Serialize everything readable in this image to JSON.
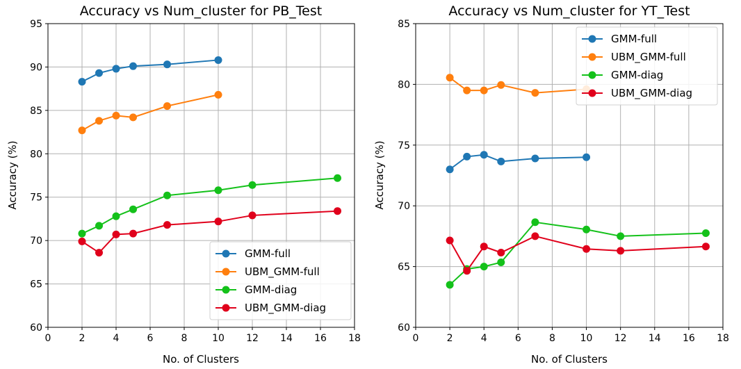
{
  "chart_data": [
    {
      "type": "line",
      "title": "Accuracy vs Num_cluster for PB_Test",
      "xlabel": "No. of Clusters",
      "ylabel": "Accuracy (%)",
      "xlim": [
        0,
        18
      ],
      "ylim": [
        60,
        95
      ],
      "xticks": [
        0,
        2,
        4,
        6,
        8,
        10,
        12,
        14,
        16,
        18
      ],
      "yticks": [
        60,
        65,
        70,
        75,
        80,
        85,
        90,
        95
      ],
      "grid": true,
      "legend_position": "lower-right",
      "series": [
        {
          "name": "GMM-full",
          "color": "#1f77b4",
          "x": [
            2,
            3,
            4,
            5,
            7,
            10
          ],
          "y": [
            88.3,
            89.3,
            89.8,
            90.1,
            90.3,
            90.8
          ]
        },
        {
          "name": "UBM_GMM-full",
          "color": "#ff7f0e",
          "x": [
            2,
            3,
            4,
            5,
            7,
            10
          ],
          "y": [
            82.7,
            83.8,
            84.4,
            84.2,
            85.5,
            86.8
          ]
        },
        {
          "name": "GMM-diag",
          "color": "#14c11a",
          "x": [
            2,
            3,
            4,
            5,
            7,
            10,
            12,
            17
          ],
          "y": [
            70.8,
            71.7,
            72.8,
            73.6,
            75.2,
            75.8,
            76.4,
            77.2
          ]
        },
        {
          "name": "UBM_GMM-diag",
          "color": "#e0001b",
          "x": [
            2,
            3,
            4,
            5,
            7,
            10,
            12,
            17
          ],
          "y": [
            69.9,
            68.6,
            70.7,
            70.8,
            71.8,
            72.2,
            72.9,
            73.4
          ]
        }
      ]
    },
    {
      "type": "line",
      "title": "Accuracy vs Num_cluster for YT_Test",
      "xlabel": "No. of Clusters",
      "ylabel": "Accuracy (%)",
      "xlim": [
        0,
        18
      ],
      "ylim": [
        60,
        85
      ],
      "xticks": [
        0,
        2,
        4,
        6,
        8,
        10,
        12,
        14,
        16,
        18
      ],
      "yticks": [
        60,
        65,
        70,
        75,
        80,
        85
      ],
      "grid": true,
      "legend_position": "upper-right",
      "series": [
        {
          "name": "GMM-full",
          "color": "#1f77b4",
          "x": [
            2,
            3,
            4,
            5,
            7,
            10
          ],
          "y": [
            73.0,
            74.05,
            74.2,
            73.65,
            73.9,
            74.0
          ]
        },
        {
          "name": "UBM_GMM-full",
          "color": "#ff7f0e",
          "x": [
            2,
            3,
            4,
            5,
            7,
            10
          ],
          "y": [
            80.55,
            79.5,
            79.5,
            79.95,
            79.3,
            79.6
          ]
        },
        {
          "name": "GMM-diag",
          "color": "#14c11a",
          "x": [
            2,
            3,
            4,
            5,
            7,
            10,
            12,
            17
          ],
          "y": [
            63.5,
            64.8,
            65.0,
            65.35,
            68.65,
            68.05,
            67.5,
            67.75
          ]
        },
        {
          "name": "UBM_GMM-diag",
          "color": "#e0001b",
          "x": [
            2,
            3,
            4,
            5,
            7,
            10,
            12,
            17
          ],
          "y": [
            67.15,
            64.65,
            66.65,
            66.15,
            67.5,
            66.45,
            66.3,
            66.65
          ]
        }
      ]
    }
  ]
}
